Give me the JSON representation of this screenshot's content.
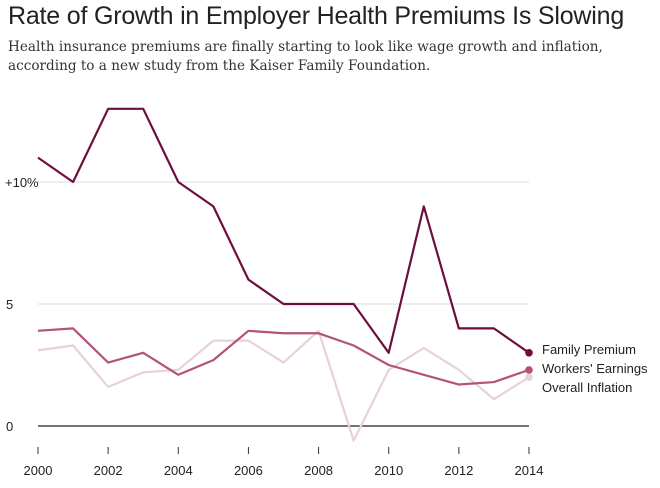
{
  "title": "Rate of Growth in Employer Health Premiums Is Slowing",
  "subtitle": "Health insurance premiums are finally starting to look like wage growth and inflation, according to a new study from the Kaiser Family Foundation.",
  "chart_data": {
    "type": "line",
    "title": "Rate of Growth in Employer Health Premiums Is Slowing",
    "x": [
      2000,
      2001,
      2002,
      2003,
      2004,
      2005,
      2006,
      2007,
      2008,
      2009,
      2010,
      2011,
      2012,
      2013,
      2014
    ],
    "xticks": [
      "2000",
      "2002",
      "2004",
      "2006",
      "2008",
      "2010",
      "2012",
      "2014"
    ],
    "yticks": [
      {
        "value": 0,
        "label": "0"
      },
      {
        "value": 5,
        "label": "5"
      },
      {
        "value": 10,
        "label": "+10%"
      }
    ],
    "ylim": [
      -1,
      13.5
    ],
    "grid": true,
    "legend": "right, labels at line ends",
    "series": [
      {
        "name": "Family Premium",
        "color": "#6d0e3e",
        "values": [
          11,
          10,
          13,
          13,
          10,
          9,
          6,
          5,
          5,
          5,
          3,
          9,
          4,
          4,
          3
        ]
      },
      {
        "name": "Workers' Earnings",
        "color": "#b3527c",
        "values": [
          3.9,
          4.0,
          2.6,
          3.0,
          2.1,
          2.7,
          3.9,
          3.8,
          3.8,
          3.3,
          2.5,
          2.1,
          1.7,
          1.8,
          2.3
        ]
      },
      {
        "name": "Overall Inflation",
        "color": "#e9d1db",
        "values": [
          3.1,
          3.3,
          1.6,
          2.2,
          2.3,
          3.5,
          3.5,
          2.6,
          3.9,
          -0.6,
          2.3,
          3.2,
          2.3,
          1.1,
          2.0
        ]
      }
    ]
  }
}
